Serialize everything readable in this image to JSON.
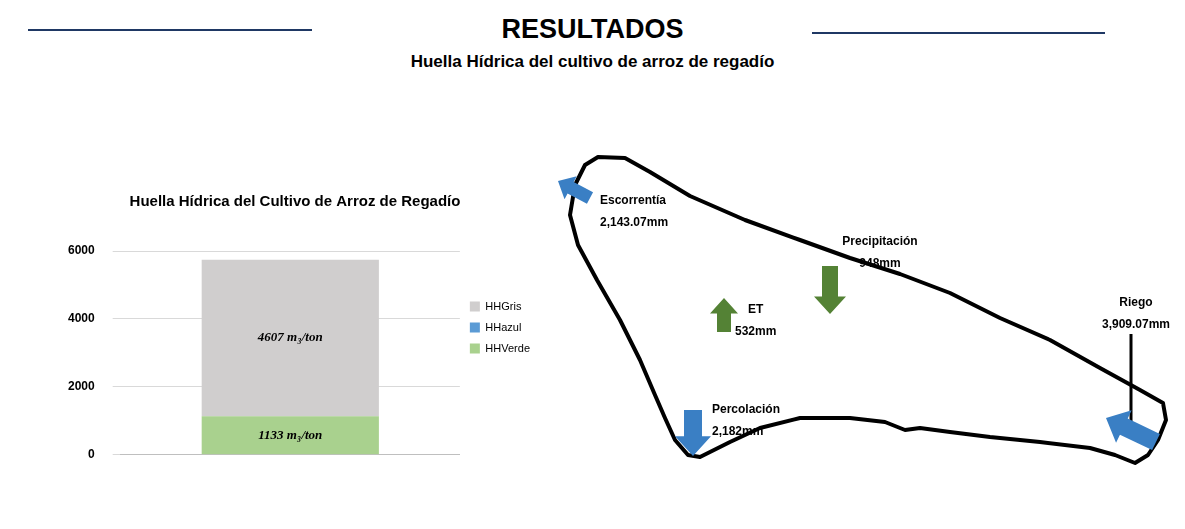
{
  "header": {
    "title": "RESULTADOS",
    "subtitle": "Huella Hídrica del cultivo de arroz de regadío"
  },
  "chart_data": {
    "type": "bar",
    "title": "Huella Hídrica del Cultivo de Arroz de Regadío",
    "categories": [
      null
    ],
    "series": [
      {
        "name": "HHGris",
        "color": "#d0cece",
        "values": [
          4607
        ],
        "value_labels": [
          "4607 m₃/ton"
        ]
      },
      {
        "name": "HHazul",
        "color": "#5b9bd5",
        "values": [
          null
        ]
      },
      {
        "name": "HHVerde",
        "color": "#a9d18e",
        "values": [
          1133
        ],
        "value_labels": [
          "1133 m₃/ton"
        ]
      }
    ],
    "stacked": true,
    "ylim": [
      0,
      6000
    ],
    "yticks": [
      0,
      2000,
      4000,
      6000
    ],
    "grid": true,
    "legend": "right",
    "data_labels": true,
    "tick_labels": "y"
  },
  "diagram": {
    "flows": [
      {
        "label": "Escorrentía",
        "value": "2,143.07mm"
      },
      {
        "label": "Precipitación",
        "value": "948mm"
      },
      {
        "label": "ET",
        "value": "532mm"
      },
      {
        "label": "Percolación",
        "value": "2,182mm"
      },
      {
        "label": "Riego",
        "value": "3,909.07mm"
      }
    ]
  }
}
